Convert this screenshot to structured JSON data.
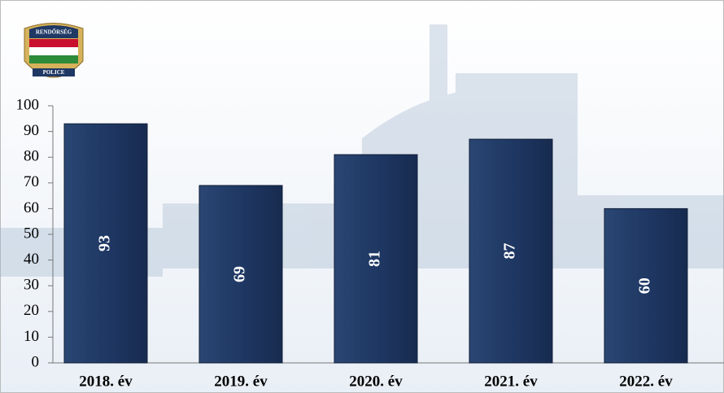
{
  "chart_data": {
    "type": "bar",
    "logo": {
      "top": "RENDŐRSÉG",
      "bottom": "POLICE"
    },
    "categories": [
      "2018. év",
      "2019. év",
      "2020. év",
      "2021. év",
      "2022. év"
    ],
    "values": [
      93,
      69,
      81,
      87,
      60
    ],
    "color": "#1f3864",
    "ylim": [
      0,
      100
    ],
    "yticks": [
      0,
      10,
      20,
      30,
      40,
      50,
      60,
      70,
      80,
      90,
      100
    ],
    "grid": false
  }
}
